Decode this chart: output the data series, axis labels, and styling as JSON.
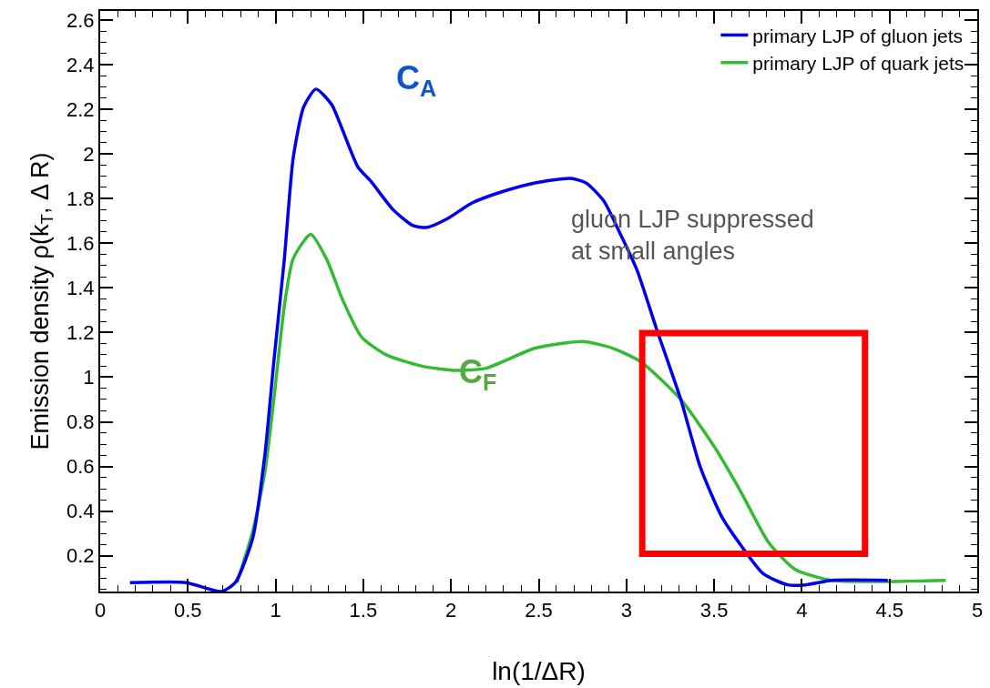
{
  "chart_data": {
    "type": "line",
    "xlabel": "ln(1/ΔR)",
    "ylabel": "Emission density ρ(k$_{T}$, Δ R)",
    "xlim": [
      0,
      5
    ],
    "ylim": [
      0.04,
      2.64
    ],
    "xticks": [
      0,
      0.5,
      1,
      1.5,
      2,
      2.5,
      3,
      3.5,
      4,
      4.5,
      5
    ],
    "yticks": [
      0.2,
      0.4,
      0.6,
      0.8,
      1,
      1.2,
      1.4,
      1.6,
      1.8,
      2,
      2.2,
      2.4,
      2.6
    ],
    "legend": "top right",
    "marker": "none",
    "line_style": "solid",
    "series": [
      {
        "name": "primary LJP of gluon jets",
        "color": "#0000ee",
        "x": [
          0.17,
          0.49,
          0.69,
          0.77,
          0.87,
          0.94,
          0.99,
          1.05,
          1.1,
          1.16,
          1.23,
          1.32,
          1.38,
          1.47,
          1.54,
          1.67,
          1.78,
          1.86,
          1.98,
          2.12,
          2.29,
          2.48,
          2.68,
          2.77,
          2.87,
          2.96,
          3.06,
          3.17,
          3.31,
          3.42,
          3.54,
          3.65,
          3.78,
          3.92,
          4.02,
          4.17,
          4.49
        ],
        "values": [
          0.08,
          0.08,
          0.04,
          0.08,
          0.28,
          0.66,
          1.07,
          1.53,
          1.98,
          2.21,
          2.29,
          2.22,
          2.11,
          1.94,
          1.88,
          1.75,
          1.68,
          1.67,
          1.71,
          1.78,
          1.83,
          1.87,
          1.89,
          1.87,
          1.79,
          1.65,
          1.48,
          1.22,
          0.9,
          0.6,
          0.38,
          0.25,
          0.12,
          0.07,
          0.07,
          0.09,
          0.09
        ]
      },
      {
        "name": "primary LJP of quark jets",
        "color": "#33bb33",
        "x": [
          0.78,
          0.87,
          0.94,
          0.99,
          1.05,
          1.1,
          1.2,
          1.29,
          1.38,
          1.49,
          1.63,
          1.83,
          2.03,
          2.2,
          2.48,
          2.75,
          2.92,
          3.08,
          3.31,
          3.5,
          3.65,
          3.81,
          3.96,
          4.17,
          4.82
        ],
        "values": [
          0.08,
          0.31,
          0.58,
          0.9,
          1.32,
          1.53,
          1.64,
          1.53,
          1.35,
          1.18,
          1.1,
          1.05,
          1.03,
          1.04,
          1.13,
          1.16,
          1.13,
          1.07,
          0.9,
          0.69,
          0.49,
          0.26,
          0.14,
          0.09,
          0.09
        ]
      }
    ],
    "annotations": [
      "C$_{A}$",
      "C$_{F}$",
      "gluon LJP suppressed\nat small angles"
    ]
  }
}
